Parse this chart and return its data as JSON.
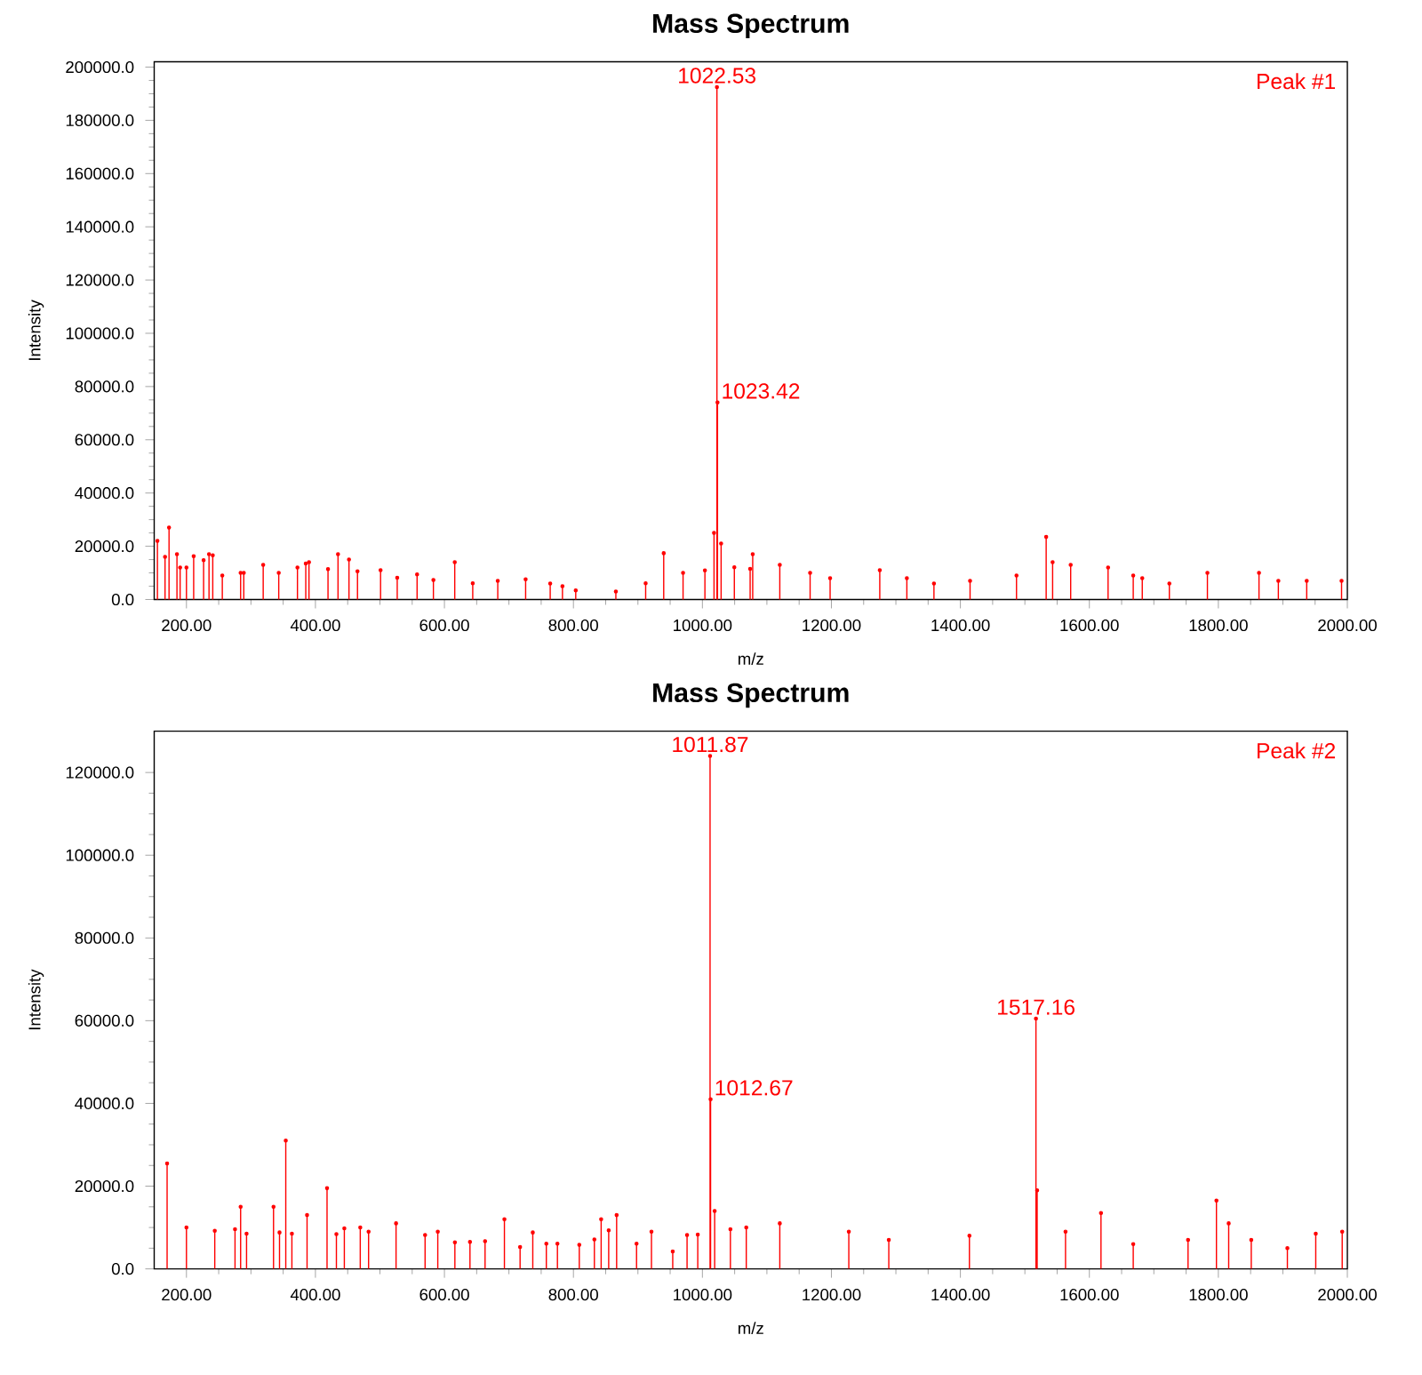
{
  "chart_data": [
    {
      "type": "lollipop",
      "marker": "circle",
      "title": "Mass Spectrum",
      "xlabel": "m/z",
      "ylabel": "Intensity",
      "series": [
        {
          "color": "#ff0000",
          "x": [
            155,
            166.8,
            173,
            185.3,
            190.2,
            200,
            211.2,
            226.6,
            235,
            240.8,
            255.6,
            284,
            288.9,
            319,
            343.1,
            372.1,
            385,
            390,
            419.5,
            435,
            452,
            465.2,
            501,
            526.8,
            557.6,
            582.9,
            616,
            643.9,
            682.7,
            725.9,
            764,
            783,
            803.6,
            865.8,
            912,
            940,
            970,
            1003.9,
            1018,
            1022.53,
            1023.42,
            1029,
            1049.5,
            1074,
            1078,
            1120,
            1167,
            1198,
            1275,
            1317,
            1359,
            1415,
            1487,
            1533,
            1543,
            1571,
            1629,
            1668,
            1682,
            1724,
            1783,
            1863,
            1893,
            1937,
            1991
          ],
          "values": [
            22000,
            16000,
            27000,
            17000,
            12000,
            12000,
            16300,
            14800,
            17000,
            16600,
            9000,
            10000,
            10000,
            13000,
            10000,
            12000,
            13500,
            14000,
            11400,
            17000,
            15000,
            10600,
            11000,
            8200,
            9400,
            7300,
            14000,
            6100,
            7000,
            7600,
            6000,
            5000,
            3400,
            3000,
            6100,
            17400,
            10000,
            10900,
            25000,
            192500,
            74000,
            21000,
            12100,
            11500,
            17000,
            13000,
            10000,
            8000,
            11000,
            8000,
            6000,
            7000,
            9000,
            23500,
            14000,
            13000,
            12000,
            9000,
            8000,
            6000,
            10000,
            10000,
            7000,
            7000,
            7000
          ]
        }
      ],
      "xlim": [
        150,
        2000
      ],
      "ylim": [
        0,
        202000
      ],
      "xticks": [
        {
          "value": 200,
          "label": "200.00"
        },
        {
          "value": 400,
          "label": "400.00"
        },
        {
          "value": 600,
          "label": "600.00"
        },
        {
          "value": 800,
          "label": "800.00"
        },
        {
          "value": 1000,
          "label": "1000.00"
        },
        {
          "value": 1200,
          "label": "1200.00"
        },
        {
          "value": 1400,
          "label": "1400.00"
        },
        {
          "value": 1600,
          "label": "1600.00"
        },
        {
          "value": 1800,
          "label": "1800.00"
        },
        {
          "value": 2000,
          "label": "2000.00"
        }
      ],
      "yticks": [
        {
          "value": 0,
          "label": "0.0"
        },
        {
          "value": 20000,
          "label": "20000.0"
        },
        {
          "value": 40000,
          "label": "40000.0"
        },
        {
          "value": 60000,
          "label": "60000.0"
        },
        {
          "value": 80000,
          "label": "80000.0"
        },
        {
          "value": 100000,
          "label": "100000.0"
        },
        {
          "value": 120000,
          "label": "120000.0"
        },
        {
          "value": 140000,
          "label": "140000.0"
        },
        {
          "value": 160000,
          "label": "160000.0"
        },
        {
          "value": 180000,
          "label": "180000.0"
        },
        {
          "value": 200000,
          "label": "200000.0"
        }
      ],
      "annotations": [
        {
          "text": "1022.53",
          "x": 1022.53,
          "y": 192500
        },
        {
          "text": "1023.42",
          "x": 1023.42,
          "y": 74000
        },
        "Peak #1"
      ]
    },
    {
      "type": "lollipop",
      "marker": "circle",
      "title": "Mass Spectrum",
      "xlabel": "m/z",
      "ylabel": "Intensity",
      "series": [
        {
          "color": "#ff0000",
          "x": [
            170,
            200,
            243.9,
            275.3,
            284,
            293.2,
            335,
            344.3,
            354,
            363.5,
            387,
            418,
            432.5,
            444.8,
            469.5,
            482.4,
            525,
            570,
            589.7,
            616.2,
            639.6,
            663,
            693,
            717.3,
            737,
            758,
            775.2,
            809.1,
            832.5,
            843,
            854.7,
            867,
            897.9,
            921,
            954,
            976.2,
            992.8,
            1011.87,
            1012.67,
            1019,
            1043.4,
            1068,
            1120,
            1227,
            1289,
            1414,
            1517.16,
            1519,
            1563,
            1618,
            1668,
            1753,
            1797,
            1816,
            1851,
            1907,
            1951,
            1992
          ],
          "values": [
            25500,
            10000,
            9200,
            9600,
            15000,
            8500,
            15000,
            8800,
            31000,
            8500,
            13000,
            19500,
            8400,
            9800,
            10000,
            9000,
            11000,
            8200,
            9000,
            6400,
            6500,
            6700,
            12000,
            5300,
            8800,
            6100,
            6100,
            5800,
            7100,
            12000,
            9300,
            13000,
            6100,
            9000,
            4200,
            8200,
            8300,
            124000,
            41000,
            14000,
            9600,
            10000,
            11000,
            9000,
            7000,
            8000,
            60500,
            19000,
            9000,
            13500,
            6000,
            7000,
            16500,
            11000,
            7000,
            5000,
            8500,
            9000
          ]
        }
      ],
      "xlim": [
        150,
        2000
      ],
      "ylim": [
        0,
        130000
      ],
      "xticks": [
        {
          "value": 200,
          "label": "200.00"
        },
        {
          "value": 400,
          "label": "400.00"
        },
        {
          "value": 600,
          "label": "600.00"
        },
        {
          "value": 800,
          "label": "800.00"
        },
        {
          "value": 1000,
          "label": "1000.00"
        },
        {
          "value": 1200,
          "label": "1200.00"
        },
        {
          "value": 1400,
          "label": "1400.00"
        },
        {
          "value": 1600,
          "label": "1600.00"
        },
        {
          "value": 1800,
          "label": "1800.00"
        },
        {
          "value": 2000,
          "label": "2000.00"
        }
      ],
      "yticks": [
        {
          "value": 0,
          "label": "0.0"
        },
        {
          "value": 20000,
          "label": "20000.0"
        },
        {
          "value": 40000,
          "label": "40000.0"
        },
        {
          "value": 60000,
          "label": "60000.0"
        },
        {
          "value": 80000,
          "label": "80000.0"
        },
        {
          "value": 100000,
          "label": "100000.0"
        },
        {
          "value": 120000,
          "label": "120000.0"
        }
      ],
      "annotations": [
        {
          "text": "1011.87",
          "x": 1011.87,
          "y": 124000
        },
        {
          "text": "1012.67",
          "x": 1012.67,
          "y": 41000
        },
        {
          "text": "1517.16",
          "x": 1517.16,
          "y": 60500
        },
        "Peak #2"
      ]
    }
  ]
}
